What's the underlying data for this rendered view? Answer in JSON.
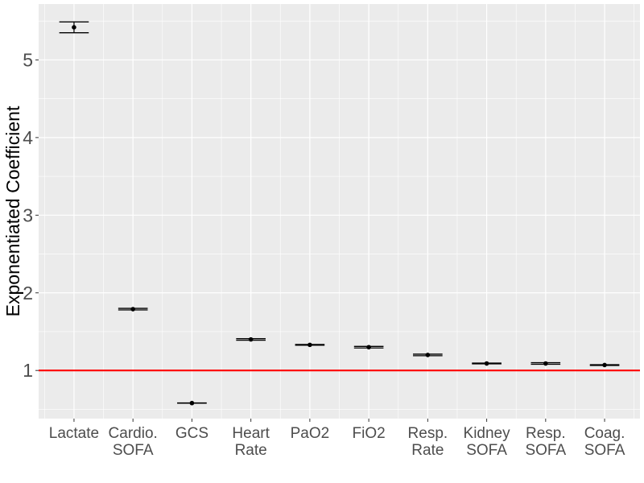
{
  "chart_data": {
    "type": "scatter",
    "ylabel": "Exponentiated Coefficient",
    "categories": [
      [
        "Lactate"
      ],
      [
        "Cardio.",
        "SOFA"
      ],
      [
        "GCS"
      ],
      [
        "Heart",
        "Rate"
      ],
      [
        "PaO2"
      ],
      [
        "FiO2"
      ],
      [
        "Resp.",
        "Rate"
      ],
      [
        "Kidney",
        "SOFA"
      ],
      [
        "Resp.",
        "SOFA"
      ],
      [
        "Coag.",
        "SOFA"
      ]
    ],
    "estimates": [
      5.42,
      1.79,
      0.58,
      1.4,
      1.33,
      1.3,
      1.2,
      1.09,
      1.09,
      1.07
    ],
    "ci_low": [
      5.35,
      1.78,
      0.578,
      1.39,
      1.325,
      1.29,
      1.19,
      1.085,
      1.08,
      1.065
    ],
    "ci_high": [
      5.49,
      1.8,
      0.582,
      1.41,
      1.335,
      1.31,
      1.21,
      1.095,
      1.1,
      1.075
    ],
    "ylim": [
      0.38,
      5.72
    ],
    "yticks": [
      1,
      2,
      3,
      4,
      5
    ],
    "reference_line": {
      "y": 1,
      "color": "#ff0000"
    },
    "panel_background": "#ebebeb",
    "grid": true
  }
}
